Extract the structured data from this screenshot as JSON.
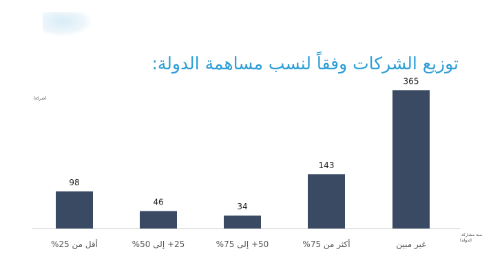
{
  "title": "توزيع الشركات وفقاً لنسب مساهمة الدولة:",
  "chart_data": {
    "type": "bar",
    "ylabel": "(شركة)",
    "xlabel": "(نسبة مشاركة الدولة)",
    "categories": [
      "غير مبين",
      "أكثر من 75%",
      "50+ إلى 75%",
      "25+ إلى 50%",
      "أقل من 25%"
    ],
    "values": [
      365,
      143,
      34,
      46,
      98
    ],
    "ylim": [
      0,
      400
    ],
    "grid": false,
    "legend": "none",
    "bar_color": "#3b4a63"
  }
}
